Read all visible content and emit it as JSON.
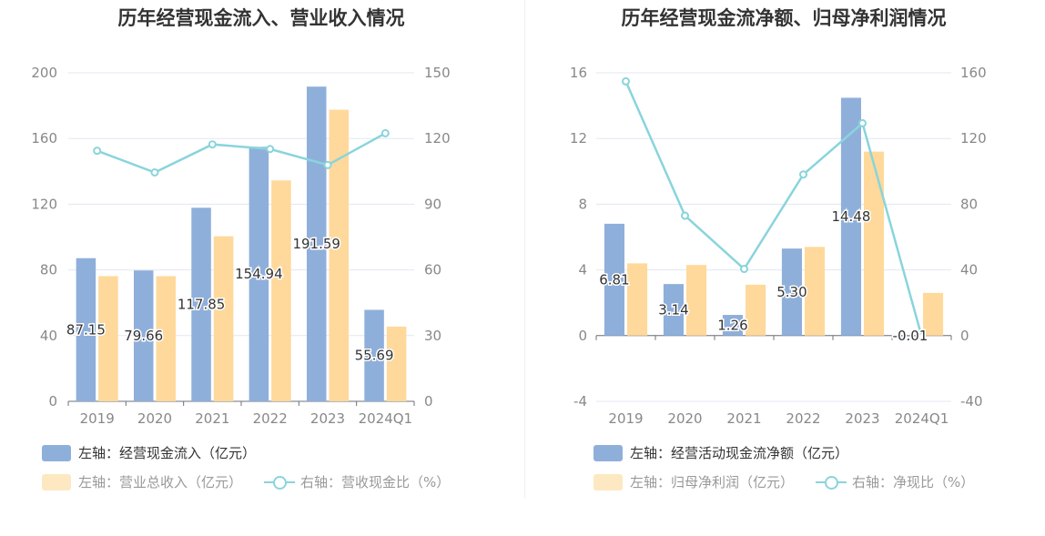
{
  "chart_data": [
    {
      "type": "bar+line",
      "title": "历年经营现金流入、营业收入情况",
      "categories": [
        "2019",
        "2020",
        "2021",
        "2022",
        "2023",
        "2024Q1"
      ],
      "left_axis": {
        "min": 0,
        "max": 200,
        "ticks": [
          "0",
          "40",
          "80",
          "120",
          "160",
          "200"
        ]
      },
      "right_axis": {
        "min": 0,
        "max": 150,
        "ticks": [
          "0",
          "30",
          "60",
          "90",
          "120",
          "150"
        ]
      },
      "series": [
        {
          "name": "左轴：经营现金流入（亿元）",
          "kind": "bar",
          "axis": "left",
          "color": "#8fafdb",
          "values": [
            87.15,
            79.66,
            117.85,
            154.94,
            191.59,
            55.69
          ],
          "labels": [
            "87.15",
            "79.66",
            "117.85",
            "154.94",
            "191.59",
            "55.69"
          ]
        },
        {
          "name": "左轴：营业总收入（亿元）",
          "kind": "bar",
          "axis": "left",
          "color": "#fed99b",
          "values": [
            76.2,
            76.2,
            100.5,
            134.5,
            177.5,
            45.5
          ]
        },
        {
          "name": "右轴：营收现金比（%）",
          "kind": "line",
          "axis": "right",
          "color": "#8ad4dc",
          "values": [
            114.4,
            104.5,
            117.3,
            115.2,
            107.9,
            122.4
          ]
        }
      ]
    },
    {
      "type": "bar+line",
      "title": "历年经营现金流净额、归母净利润情况",
      "categories": [
        "2019",
        "2020",
        "2021",
        "2022",
        "2023",
        "2024Q1"
      ],
      "left_axis": {
        "min": -4,
        "max": 16,
        "ticks": [
          "-4",
          "0",
          "4",
          "8",
          "12",
          "16"
        ]
      },
      "right_axis": {
        "min": -40,
        "max": 160,
        "ticks": [
          "-40",
          "0",
          "40",
          "80",
          "120",
          "160"
        ]
      },
      "series": [
        {
          "name": "左轴：经营活动现金流净额（亿元）",
          "kind": "bar",
          "axis": "left",
          "color": "#8fafdb",
          "values": [
            6.81,
            3.14,
            1.26,
            5.3,
            14.48,
            -0.01
          ],
          "labels": [
            "6.81",
            "3.14",
            "1.26",
            "5.30",
            "14.48",
            "-0.01"
          ]
        },
        {
          "name": "左轴：归母净利润（亿元）",
          "kind": "bar",
          "axis": "left",
          "color": "#fed99b",
          "values": [
            4.4,
            4.3,
            3.1,
            5.4,
            11.2,
            2.6
          ]
        },
        {
          "name": "右轴：净现比（%）",
          "kind": "line",
          "axis": "right",
          "color": "#8ad4dc",
          "values": [
            154.8,
            73.0,
            40.6,
            98.1,
            129.3,
            -0.4
          ]
        }
      ]
    }
  ]
}
